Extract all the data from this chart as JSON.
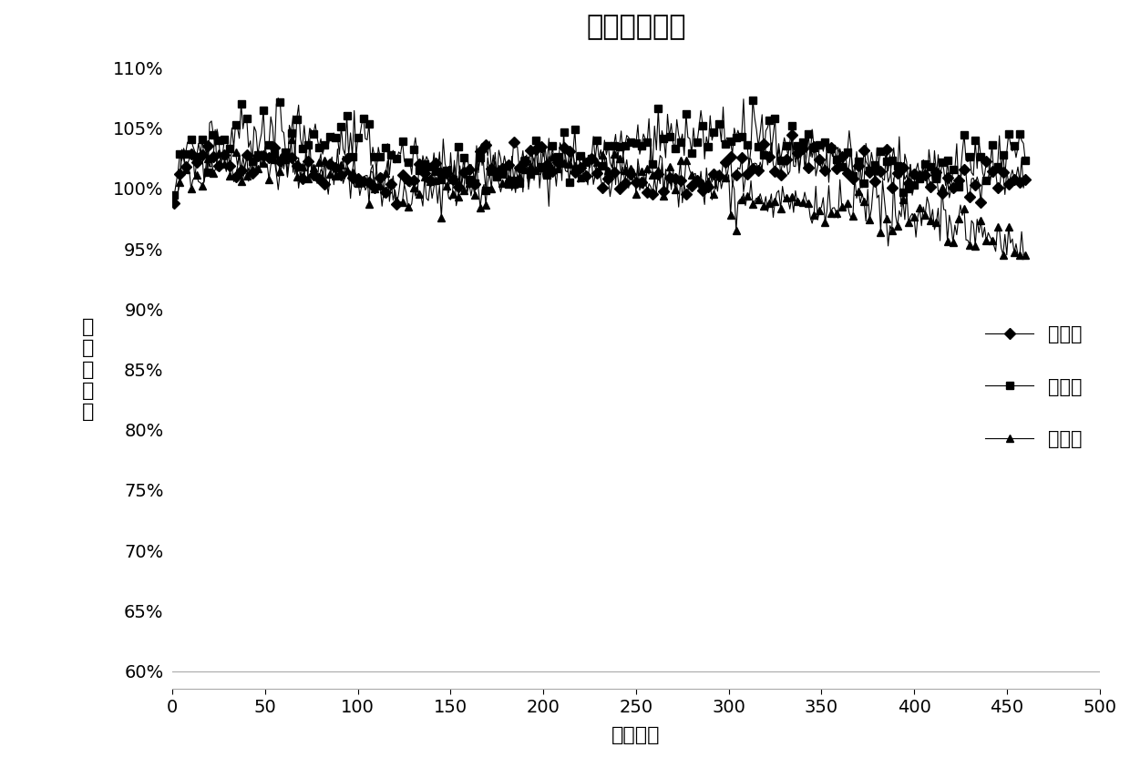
{
  "title": "常温循环对比",
  "xlabel": "循环次数",
  "ylabel": "容量保持率",
  "xlim": [
    0,
    500
  ],
  "xticks": [
    0,
    50,
    100,
    150,
    200,
    250,
    300,
    350,
    400,
    450,
    500
  ],
  "yticks": [
    0.6,
    0.65,
    0.7,
    0.75,
    0.8,
    0.85,
    0.9,
    0.95,
    1.0,
    1.05,
    1.1
  ],
  "ytick_labels": [
    "60%",
    "65%",
    "70%",
    "75%",
    "80%",
    "85%",
    "90%",
    "95%",
    "100%",
    "105%",
    "110%"
  ],
  "series": [
    {
      "name": "实例一",
      "marker": "D",
      "color": "#000000",
      "markersize": 6
    },
    {
      "name": "实例二",
      "marker": "s",
      "color": "#000000",
      "markersize": 6
    },
    {
      "name": "实例三",
      "marker": "^",
      "color": "#000000",
      "markersize": 6
    }
  ],
  "background_color": "#ffffff",
  "title_fontsize": 22,
  "axis_label_fontsize": 16,
  "tick_fontsize": 14,
  "legend_fontsize": 15
}
